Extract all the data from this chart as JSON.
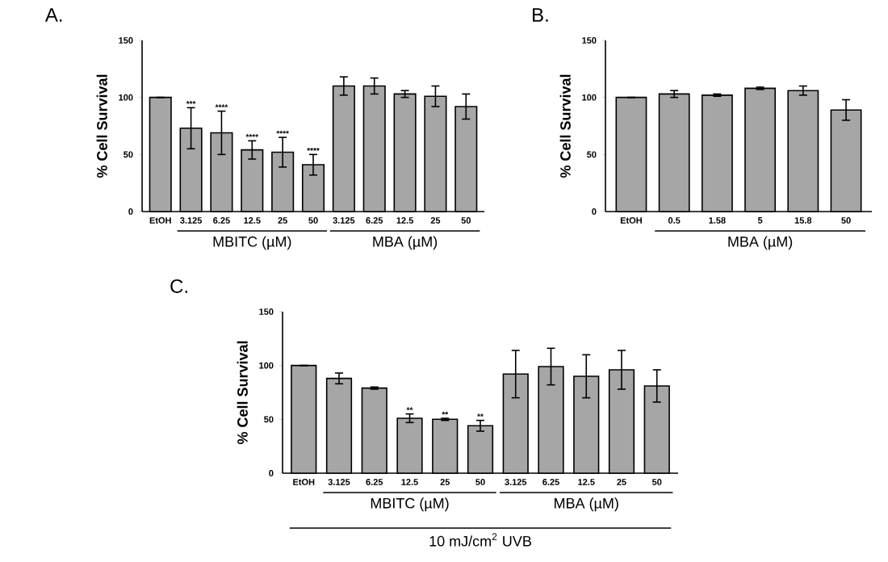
{
  "chart_data": [
    {
      "type": "bar",
      "title": "A.",
      "ylabel": "% Cell Survival",
      "color": "#a6a6a6",
      "categories": [
        "EtOH",
        "3.125",
        "6.25",
        "12.5",
        "25",
        "50",
        "3.125",
        "6.25",
        "12.5",
        "25",
        "50"
      ],
      "values": [
        100,
        73,
        69,
        54,
        52,
        41,
        110,
        110,
        103,
        101,
        92
      ],
      "errors": [
        0,
        18,
        19,
        8,
        13,
        9,
        8,
        7,
        3,
        9,
        11
      ],
      "value_labels": [
        null,
        "***",
        "****",
        "****",
        "****",
        "****",
        null,
        null,
        null,
        null,
        null
      ],
      "annotations": [
        "MBITC (µM)",
        "MBA (µM)"
      ],
      "ylim": [
        0,
        150
      ],
      "yticks": [
        0,
        50,
        100,
        150
      ]
    },
    {
      "type": "bar",
      "title": "B.",
      "ylabel": "% Cell Survival",
      "color": "#a6a6a6",
      "categories": [
        "EtOH",
        "0.5",
        "1.58",
        "5",
        "15.8",
        "50"
      ],
      "values": [
        100,
        103,
        102,
        108,
        106,
        89
      ],
      "errors": [
        0,
        3,
        1,
        1,
        4,
        9
      ],
      "annotations": [
        "MBA (µM)"
      ],
      "ylim": [
        0,
        150
      ],
      "yticks": [
        0,
        50,
        100,
        150
      ]
    },
    {
      "type": "bar",
      "title": "C.",
      "ylabel": "% Cell Survival",
      "xlabel": "10 mJ/cm$^{2}$ UVB",
      "color": "#a6a6a6",
      "categories": [
        "EtOH",
        "3.125",
        "6.25",
        "12.5",
        "25",
        "50",
        "3.125",
        "6.25",
        "12.5",
        "25",
        "50"
      ],
      "values": [
        100,
        88,
        79,
        51,
        50,
        44,
        92,
        99,
        90,
        96,
        81
      ],
      "errors": [
        0,
        5,
        1,
        4,
        1,
        5,
        22,
        17,
        20,
        18,
        15
      ],
      "value_labels": [
        null,
        null,
        null,
        "**",
        "**",
        "**",
        null,
        null,
        null,
        null,
        null
      ],
      "annotations": [
        "MBITC (µM)",
        "MBA (µM)"
      ],
      "ylim": [
        0,
        150
      ],
      "yticks": [
        0,
        50,
        100,
        150
      ]
    }
  ]
}
